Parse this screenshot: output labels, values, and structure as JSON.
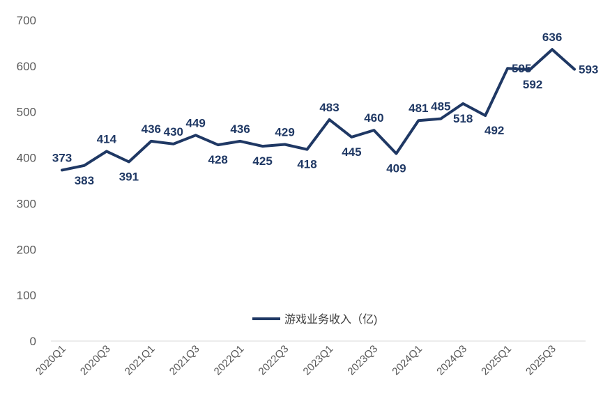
{
  "chart_data": {
    "type": "line",
    "title": "",
    "xlabel": "",
    "ylabel": "",
    "ylim": [
      0,
      700
    ],
    "yticks": [
      0,
      100,
      200,
      300,
      400,
      500,
      600,
      700
    ],
    "grid": false,
    "legend_position": "bottom-center",
    "x": [
      "2020Q1",
      "2020Q2",
      "2020Q3",
      "2020Q4",
      "2021Q1",
      "2021Q2",
      "2021Q3",
      "2021Q4",
      "2022Q1",
      "2022Q2",
      "2022Q3",
      "2022Q4",
      "2023Q1",
      "2023Q2",
      "2023Q3",
      "2023Q4",
      "2024Q1",
      "2024Q2",
      "2024Q3",
      "2024Q4",
      "2025Q1",
      "2025Q2",
      "2025Q3",
      "2025Q4"
    ],
    "x_tick_labels_shown": [
      "2020Q1",
      "2020Q3",
      "2021Q1",
      "2021Q3",
      "2022Q1",
      "2022Q3",
      "2023Q1",
      "2023Q3",
      "2024Q1",
      "2024Q3",
      "2025Q1",
      "2025Q3"
    ],
    "series": [
      {
        "name": "游戏业务收入（亿)",
        "color": "#1F3864",
        "values": [
          373,
          383,
          414,
          391,
          436,
          430,
          449,
          428,
          436,
          425,
          429,
          418,
          483,
          445,
          460,
          409,
          481,
          485,
          518,
          492,
          595,
          592,
          636,
          593
        ]
      }
    ]
  }
}
